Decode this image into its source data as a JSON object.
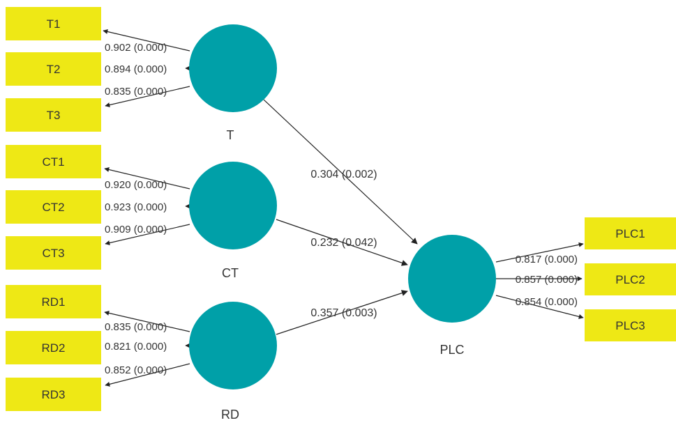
{
  "colors": {
    "latent_fill": "#00A0A8",
    "indicator_fill": "#EEE815",
    "line": "#222222",
    "text": "#333333"
  },
  "latents": [
    {
      "id": "T",
      "label": "T"
    },
    {
      "id": "CT",
      "label": "CT"
    },
    {
      "id": "RD",
      "label": "RD"
    },
    {
      "id": "PLC",
      "label": "PLC"
    }
  ],
  "indicators": [
    {
      "id": "T1",
      "label": "T1",
      "latent": "T",
      "loading": "0.902 (0.000)"
    },
    {
      "id": "T2",
      "label": "T2",
      "latent": "T",
      "loading": "0.894 (0.000)"
    },
    {
      "id": "T3",
      "label": "T3",
      "latent": "T",
      "loading": "0.835 (0.000)"
    },
    {
      "id": "CT1",
      "label": "CT1",
      "latent": "CT",
      "loading": "0.920 (0.000)"
    },
    {
      "id": "CT2",
      "label": "CT2",
      "latent": "CT",
      "loading": "0.923 (0.000)"
    },
    {
      "id": "CT3",
      "label": "CT3",
      "latent": "CT",
      "loading": "0.909 (0.000)"
    },
    {
      "id": "RD1",
      "label": "RD1",
      "latent": "RD",
      "loading": "0.835 (0.000)"
    },
    {
      "id": "RD2",
      "label": "RD2",
      "latent": "RD",
      "loading": "0.821 (0.000)"
    },
    {
      "id": "RD3",
      "label": "RD3",
      "latent": "RD",
      "loading": "0.852 (0.000)"
    },
    {
      "id": "PLC1",
      "label": "PLC1",
      "latent": "PLC",
      "loading": "0.817 (0.000)"
    },
    {
      "id": "PLC2",
      "label": "PLC2",
      "latent": "PLC",
      "loading": "0.857 (0.000)"
    },
    {
      "id": "PLC3",
      "label": "PLC3",
      "latent": "PLC",
      "loading": "0.854 (0.000)"
    }
  ],
  "paths": [
    {
      "from": "T",
      "to": "PLC",
      "label": "0.304 (0.002)"
    },
    {
      "from": "CT",
      "to": "PLC",
      "label": "0.232 (0.042)"
    },
    {
      "from": "RD",
      "to": "PLC",
      "label": "0.357 (0.003)"
    }
  ]
}
